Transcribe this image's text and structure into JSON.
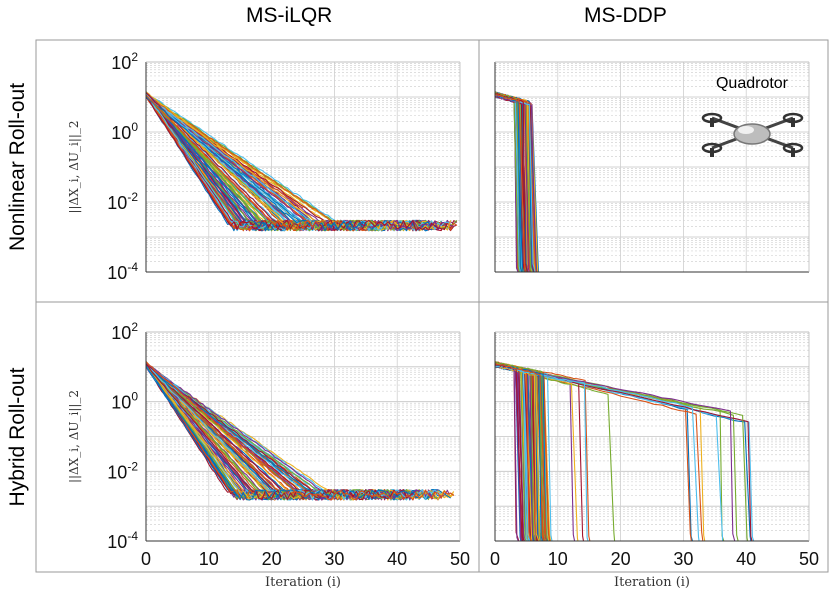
{
  "chart_data": {
    "type": "line",
    "column_titles": [
      "MS-iLQR",
      "MS-DDP"
    ],
    "row_titles": [
      "Nonlinear Roll-out",
      "Hybrid Roll-out"
    ],
    "xlabel": "Iteration (i)",
    "ylabel": "||ΔX_i, ΔU_i||_2",
    "y_scale": "log",
    "ylim": [
      0.0001,
      100
    ],
    "xlim": [
      0,
      50
    ],
    "x_ticks": [
      "0",
      "10",
      "20",
      "30",
      "40",
      "50"
    ],
    "y_ticks": [
      {
        "base": "10",
        "exp": "2"
      },
      {
        "base": "10",
        "exp": "0"
      },
      {
        "base": "10",
        "exp": "-2"
      },
      {
        "base": "10",
        "exp": "-4"
      }
    ],
    "annotation": "Quadrotor",
    "panels": [
      {
        "name": "MS-iLQR / Nonlinear Roll-out",
        "start_value": 12,
        "converged_range": [
          0.0015,
          0.003
        ],
        "converged_iteration_range": [
          24,
          50
        ],
        "series_count": 100
      },
      {
        "name": "MS-DDP / Nonlinear Roll-out",
        "start_value": 12,
        "drop_iteration_range": [
          3,
          6
        ],
        "series_count": 100
      },
      {
        "name": "MS-iLQR / Hybrid Roll-out",
        "start_value": 12,
        "converged_range": [
          0.0015,
          0.003
        ],
        "converged_iteration_range": [
          25,
          50
        ],
        "series_count": 100
      },
      {
        "name": "MS-DDP / Hybrid Roll-out",
        "start_value": 12,
        "drop_iteration_range": [
          3,
          43
        ],
        "series_count": 100
      }
    ],
    "series_colors": [
      "#0072BD",
      "#D95319",
      "#EDB120",
      "#7E2F8E",
      "#77AC30",
      "#4DBEEE",
      "#A2142F"
    ]
  }
}
